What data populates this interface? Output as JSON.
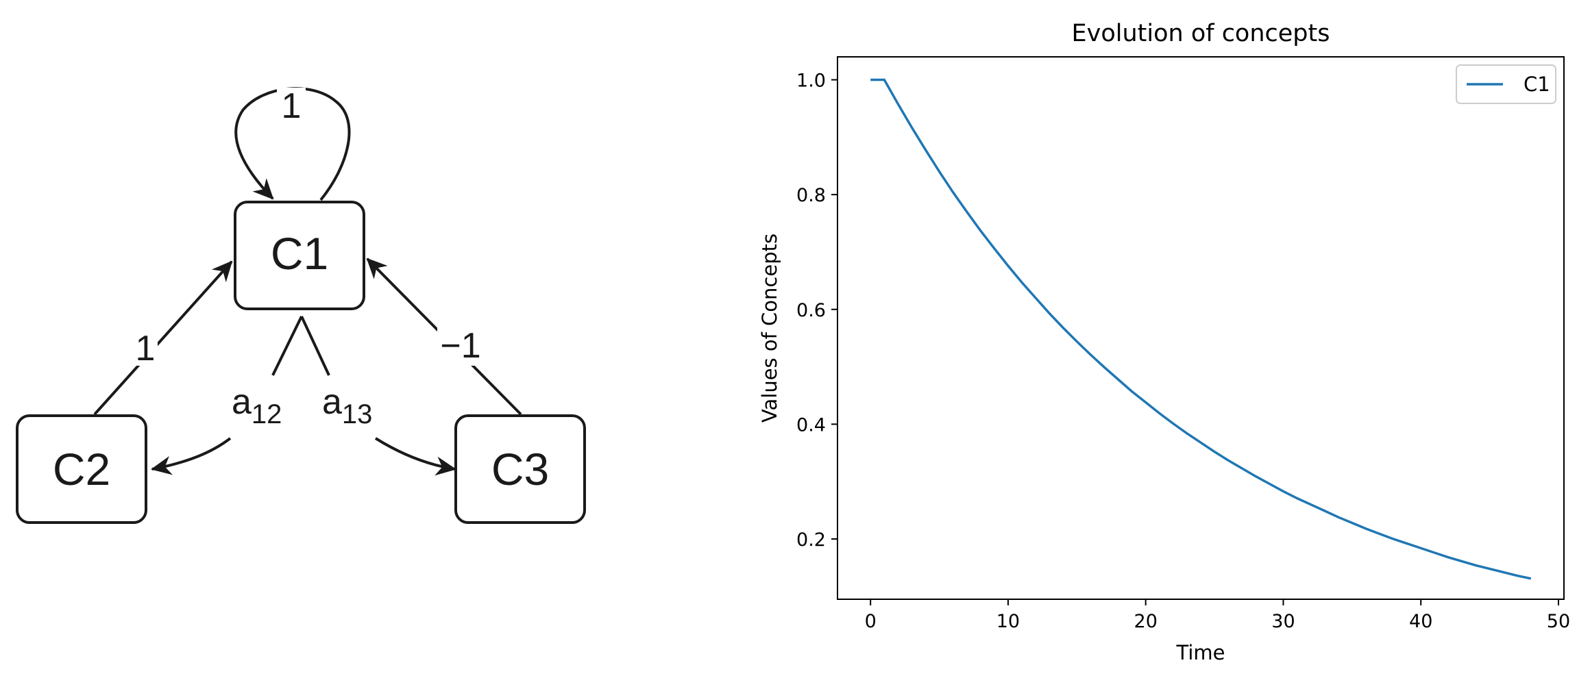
{
  "diagram": {
    "nodes": [
      {
        "id": "C1",
        "label": "C1"
      },
      {
        "id": "C2",
        "label": "C2"
      },
      {
        "id": "C3",
        "label": "C3"
      }
    ],
    "edges": [
      {
        "from": "C1",
        "to": "C1",
        "label": "1"
      },
      {
        "from": "C2",
        "to": "C1",
        "label": "1"
      },
      {
        "from": "C3",
        "to": "C1",
        "label": "−1"
      },
      {
        "from": "C1",
        "to": "C2",
        "label": "a",
        "sub": "12"
      },
      {
        "from": "C1",
        "to": "C3",
        "label": "a",
        "sub": "13"
      }
    ]
  },
  "chart_data": {
    "type": "line",
    "title": "Evolution of concepts",
    "xlabel": "Time",
    "ylabel": "Values of Concepts",
    "xlim": [
      -2.4,
      50.4
    ],
    "ylim": [
      0.095,
      1.04
    ],
    "xticks": [
      0,
      10,
      20,
      30,
      40,
      50
    ],
    "xtick_labels": [
      "0",
      "10",
      "20",
      "30",
      "40",
      "50"
    ],
    "yticks": [
      0.2,
      0.4,
      0.6,
      0.8,
      1.0
    ],
    "ytick_labels": [
      "0.2",
      "0.4",
      "0.6",
      "0.8",
      "1.0"
    ],
    "grid": false,
    "legend_position": "upper right",
    "series": [
      {
        "name": "C1",
        "color": "#1f77b4",
        "x": [
          0,
          1,
          2,
          3,
          4,
          5,
          6,
          7,
          8,
          9,
          10,
          11,
          12,
          13,
          14,
          15,
          16,
          17,
          18,
          19,
          20,
          21,
          22,
          23,
          24,
          25,
          26,
          27,
          28,
          29,
          30,
          31,
          32,
          33,
          34,
          35,
          36,
          37,
          38,
          39,
          40,
          41,
          42,
          43,
          44,
          45,
          46,
          47,
          48
        ],
        "y": [
          1.0,
          1.0,
          0.958,
          0.917,
          0.878,
          0.84,
          0.804,
          0.77,
          0.737,
          0.706,
          0.676,
          0.647,
          0.62,
          0.593,
          0.568,
          0.544,
          0.521,
          0.499,
          0.478,
          0.457,
          0.438,
          0.419,
          0.401,
          0.384,
          0.368,
          0.352,
          0.337,
          0.323,
          0.309,
          0.296,
          0.283,
          0.271,
          0.26,
          0.249,
          0.238,
          0.228,
          0.218,
          0.209,
          0.2,
          0.192,
          0.184,
          0.176,
          0.168,
          0.161,
          0.154,
          0.148,
          0.142,
          0.136,
          0.131
        ]
      }
    ]
  }
}
